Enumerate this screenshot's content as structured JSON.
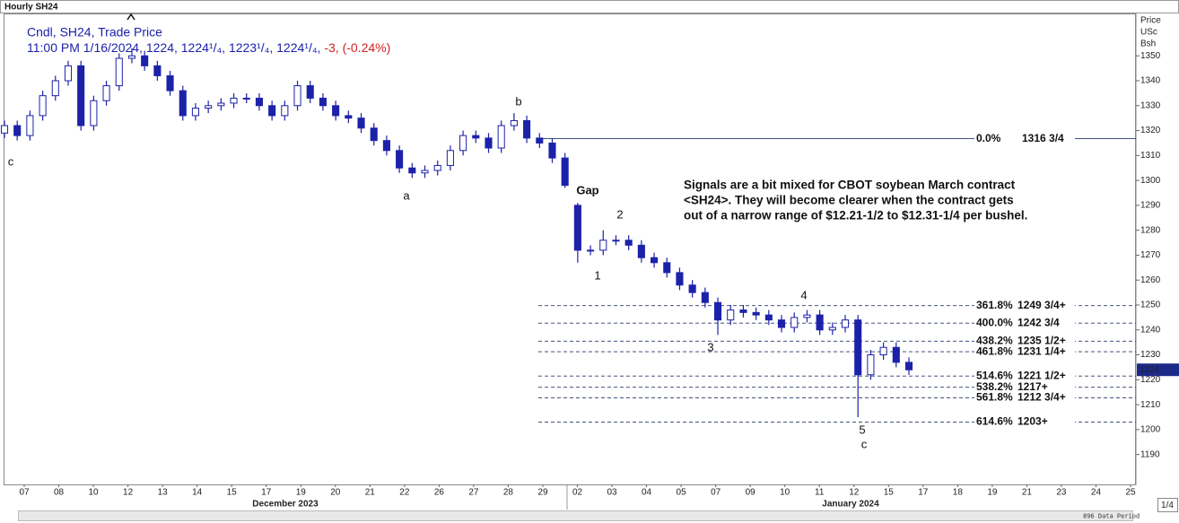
{
  "chart_data": {
    "type": "candlestick",
    "title": "Hourly SH24",
    "legend_line": "Cndl, SH24, Trade Price",
    "quote_line": "11:00 PM 1/16/2024, 1224, 1224¹/₄, 1223¹/₄, 1224¹/₄,",
    "quote_change": "-3, (-0.24%)",
    "y_axis_label": [
      "Price",
      "USc",
      "Bsh"
    ],
    "color": "#1c22a8",
    "change_color": "#d42020",
    "grid": false,
    "ylim": [
      1178,
      1367
    ],
    "yticks": [
      1190,
      1200,
      1210,
      1220,
      1230,
      1240,
      1250,
      1260,
      1270,
      1280,
      1290,
      1300,
      1310,
      1320,
      1330,
      1340,
      1350
    ],
    "last_price": 1224,
    "categories": [
      "07",
      "08",
      "10",
      "12",
      "13",
      "14",
      "15",
      "17",
      "19",
      "20",
      "21",
      "22",
      "26",
      "27",
      "28",
      "29",
      "02",
      "03",
      "04",
      "05",
      "07",
      "09",
      "10",
      "11",
      "12",
      "15",
      "17",
      "18",
      "19",
      "21",
      "23",
      "24",
      "25"
    ],
    "months": [
      "December 2023",
      "January 2024"
    ],
    "open": [
      1319,
      1322,
      1318,
      1326,
      1334,
      1340,
      1346,
      1322,
      1332,
      1338,
      1349,
      1350,
      1346,
      1342,
      1336,
      1326,
      1329,
      1330,
      1331,
      1333,
      1333,
      1330,
      1326,
      1330,
      1338,
      1333,
      1330,
      1326,
      1325,
      1321,
      1316,
      1312,
      1305,
      1303,
      1304,
      1306,
      1312,
      1318,
      1317,
      1313,
      1322,
      1324,
      1317,
      1315,
      1309,
      1290,
      1272,
      1272,
      1276,
      1276,
      1274,
      1269,
      1267,
      1263,
      1258,
      1255,
      1251,
      1244,
      1248,
      1247,
      1246,
      1244,
      1241,
      1245,
      1246,
      1240,
      1241,
      1244,
      1222,
      1230,
      1233,
      1227
    ],
    "high": [
      1324,
      1324,
      1328,
      1336,
      1342,
      1348,
      1348,
      1334,
      1340,
      1351,
      1353,
      1352,
      1348,
      1344,
      1338,
      1331,
      1332,
      1333,
      1335,
      1335,
      1335,
      1332,
      1332,
      1340,
      1340,
      1335,
      1332,
      1328,
      1327,
      1323,
      1318,
      1314,
      1307,
      1306,
      1308,
      1314,
      1320,
      1320,
      1319,
      1324,
      1327,
      1326,
      1319,
      1317,
      1311,
      1291,
      1274,
      1280,
      1278,
      1278,
      1276,
      1271,
      1269,
      1265,
      1260,
      1257,
      1253,
      1250,
      1250,
      1249,
      1248,
      1246,
      1247,
      1248,
      1248,
      1243,
      1246,
      1246,
      1232,
      1235,
      1235,
      1229
    ],
    "low": [
      1317,
      1316,
      1316,
      1324,
      1332,
      1338,
      1320,
      1320,
      1330,
      1336,
      1347,
      1344,
      1340,
      1334,
      1324,
      1324,
      1327,
      1328,
      1329,
      1331,
      1328,
      1324,
      1324,
      1328,
      1331,
      1328,
      1324,
      1323,
      1319,
      1314,
      1310,
      1303,
      1301,
      1301,
      1302,
      1304,
      1310,
      1315,
      1311,
      1311,
      1320,
      1315,
      1313,
      1307,
      1297,
      1267,
      1270,
      1270,
      1274,
      1272,
      1267,
      1265,
      1261,
      1256,
      1253,
      1249,
      1238,
      1242,
      1245,
      1244,
      1242,
      1239,
      1239,
      1243,
      1238,
      1238,
      1239,
      1205,
      1220,
      1228,
      1225,
      1222
    ],
    "close": [
      1322,
      1318,
      1326,
      1334,
      1340,
      1346,
      1322,
      1332,
      1338,
      1349,
      1350,
      1346,
      1342,
      1336,
      1326,
      1329,
      1330,
      1331,
      1333,
      1333,
      1330,
      1326,
      1330,
      1338,
      1333,
      1330,
      1326,
      1325,
      1321,
      1316,
      1312,
      1305,
      1303,
      1304,
      1306,
      1312,
      1318,
      1317,
      1313,
      1322,
      1324,
      1317,
      1315,
      1309,
      1298,
      1272,
      1272,
      1276,
      1276,
      1274,
      1269,
      1267,
      1263,
      1258,
      1255,
      1251,
      1244,
      1248,
      1247,
      1246,
      1244,
      1241,
      1245,
      1246,
      1240,
      1241,
      1244,
      1222,
      1230,
      1233,
      1227,
      1224
    ],
    "fib_levels": [
      {
        "percent": "0.0%",
        "price_label": "1316 3/4",
        "value": 1316.75,
        "dashed": false
      },
      {
        "percent": "361.8%",
        "price_label": "1249 3/4+",
        "value": 1249.75,
        "dashed": true
      },
      {
        "percent": "400.0%",
        "price_label": "1242 3/4",
        "value": 1242.75,
        "dashed": true
      },
      {
        "percent": "438.2%",
        "price_label": "1235 1/2+",
        "value": 1235.5,
        "dashed": true
      },
      {
        "percent": "461.8%",
        "price_label": "1231 1/4+",
        "value": 1231.25,
        "dashed": true
      },
      {
        "percent": "514.6%",
        "price_label": "1221 1/2+",
        "value": 1221.5,
        "dashed": true
      },
      {
        "percent": "538.2%",
        "price_label": "1217+",
        "value": 1217,
        "dashed": true
      },
      {
        "percent": "561.8%",
        "price_label": "1212 3/4+",
        "value": 1212.75,
        "dashed": true
      },
      {
        "percent": "614.6%",
        "price_label": "1203+",
        "value": 1203,
        "dashed": true
      }
    ],
    "annotations": [
      "c",
      "a",
      "b",
      "Gap",
      "1",
      "2",
      "3",
      "4",
      "5",
      "c"
    ],
    "note": [
      "Signals are a bit mixed for CBOT soybean March contract",
      "<SH24>. They will become clearer when the contract gets",
      "out of a narrow range of $12.21-1/2 to $12.31-1/4 per bushel."
    ],
    "footer_label": "896 Data Period",
    "scale_box": "1/4"
  }
}
